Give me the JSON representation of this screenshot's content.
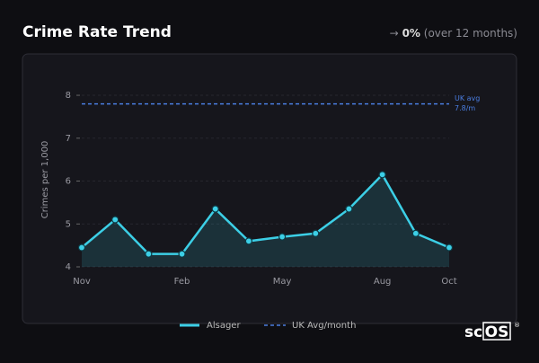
{
  "header": {
    "title": "Crime Rate Trend",
    "change": {
      "arrow": "→",
      "value": "0%",
      "period": "(over 12 months)"
    }
  },
  "chart_data": {
    "type": "line",
    "y_label": "Crimes per 1,000",
    "categories": [
      "Nov",
      null,
      null,
      "Feb",
      null,
      null,
      "May",
      null,
      null,
      "Aug",
      null,
      "Oct"
    ],
    "series": [
      {
        "name": "Alsager",
        "color": "#3ccfe6",
        "values": [
          4.45,
          5.1,
          4.3,
          4.3,
          5.35,
          4.6,
          4.7,
          4.78,
          5.35,
          6.15,
          4.78,
          4.45
        ]
      }
    ],
    "reference": {
      "name": "UK Avg/month",
      "label": [
        "UK avg",
        "7.8/m"
      ],
      "value": 7.8,
      "color": "#4a7de0"
    },
    "ylim": [
      4,
      8.2
    ],
    "yticks": [
      4,
      5,
      6,
      7,
      8
    ],
    "grid": true,
    "area": true
  },
  "logo": {
    "text": "sc",
    "boxed": "OS",
    "mark": "®"
  }
}
